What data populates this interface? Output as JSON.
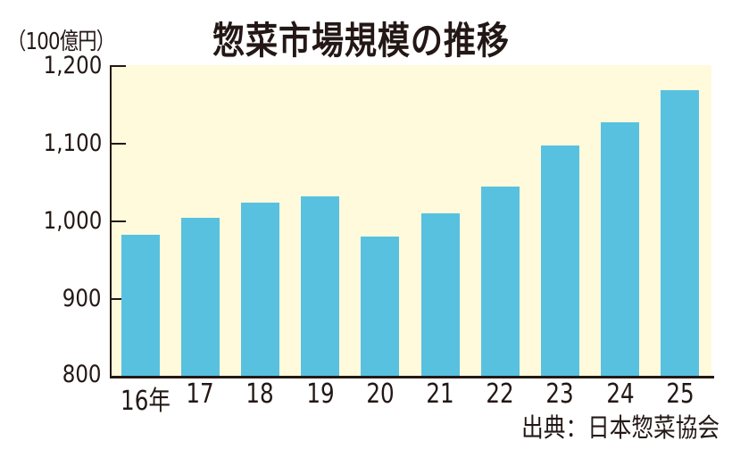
{
  "header": {
    "title": "惣菜市場規模の推移",
    "unit": "（100億円）"
  },
  "footer": {
    "source": "出典：日本惣菜協会"
  },
  "colors": {
    "bar": "#58c1e0",
    "plot_background": "#fffadb",
    "axis": "#231815"
  },
  "chart_data": {
    "type": "bar",
    "title": "惣菜市場規模の推移",
    "xlabel": "",
    "ylabel": "（100億円）",
    "categories": [
      "16年",
      "17",
      "18",
      "19",
      "20",
      "21",
      "22",
      "23",
      "24",
      "25"
    ],
    "values": [
      983,
      1005,
      1024,
      1032,
      980,
      1010,
      1045,
      1098,
      1128,
      1169
    ],
    "ylim": [
      800,
      1200
    ],
    "yticks": [
      "1,200",
      "1,100",
      "1,000",
      "900",
      "800"
    ],
    "grid": false,
    "legend": null,
    "source": "出典：日本惣菜協会"
  }
}
